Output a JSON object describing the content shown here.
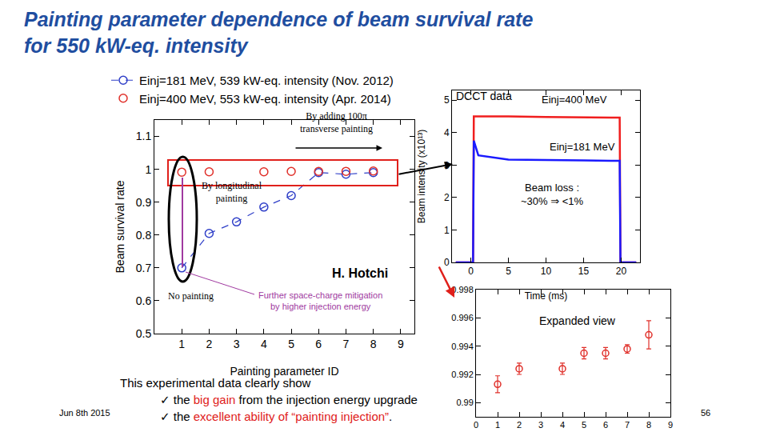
{
  "slide": {
    "title_lines": [
      "Painting parameter dependence of beam survival rate",
      "for 550 kW-eq. intensity"
    ],
    "notes_heading": "This experimental data clearly show",
    "bullet": "✓",
    "notes": [
      [
        "the ",
        "big gain",
        " from the injection energy upgrade"
      ],
      [
        "the ",
        "excellent ability of “painting injection”",
        "."
      ]
    ],
    "date": "Jun 8th 2015",
    "page": 56
  },
  "chart_data": [
    {
      "type": "scatter",
      "x_label": "Painting parameter ID",
      "y_label": "Beam survival rate",
      "x": [
        1,
        2,
        3,
        4,
        5,
        6,
        7,
        8
      ],
      "xlim": [
        0,
        9.5
      ],
      "xticks": [
        1,
        2,
        3,
        4,
        5,
        6,
        7,
        8,
        9
      ],
      "ylim": [
        0.5,
        1.15
      ],
      "yticks": [
        0.5,
        0.6,
        0.7,
        0.8,
        0.9,
        1,
        1.1
      ],
      "legend": "top left",
      "series": [
        {
          "name": "Einj=181 MeV, 539 kW-eq. intensity (Nov. 2012)",
          "color": "#2f3fc8",
          "marker": "circle-open",
          "line_style": "dash",
          "values": [
            0.7,
            0.805,
            0.84,
            0.885,
            0.92,
            0.99,
            0.985,
            0.99
          ]
        },
        {
          "name": "Einj=400 MeV, 553 kW-eq. intensity (Apr. 2014)",
          "color": "#e0302a",
          "marker": "circle-open",
          "line_style": "none",
          "values": [
            0.9913,
            0.9924,
            null,
            0.9924,
            0.9935,
            0.9935,
            0.9938,
            0.9948
          ]
        }
      ],
      "annotations": [
        [
          "By adding 100π",
          "transverse painting"
        ],
        [
          "By longitudinal",
          "painting"
        ],
        [
          "No painting"
        ],
        [
          "Further space-charge mitigation",
          "by higher injection energy"
        ],
        [
          "H. Hotchi"
        ]
      ]
    },
    {
      "type": "line",
      "x_label": "Time (ms)",
      "y_label": "Beam intensity (x10¹³)",
      "x": [
        -2,
        0.3,
        0.4,
        1,
        5,
        10,
        15,
        19.8,
        19.9,
        21,
        22
      ],
      "xlim": [
        -2.5,
        22.5
      ],
      "xticks": [
        0,
        5,
        10,
        15,
        20
      ],
      "ylim": [
        0,
        5.3
      ],
      "yticks": [
        0,
        1,
        2,
        3,
        4,
        5
      ],
      "series": [
        {
          "name": "Einj=400 MeV",
          "color": "#f01e1e",
          "line_style": "solid",
          "values": [
            0,
            0,
            4.5,
            4.5,
            4.5,
            4.48,
            4.47,
            4.46,
            0,
            0,
            0
          ]
        },
        {
          "name": "Einj=181 MeV",
          "color": "#1a1aff",
          "line_style": "solid",
          "values": [
            0,
            0,
            3.75,
            3.3,
            3.17,
            3.15,
            3.14,
            3.13,
            0,
            0,
            0
          ]
        }
      ],
      "annotations": [
        [
          "DCCT data"
        ],
        [
          "Beam loss :",
          "~30% ⇒ <1%"
        ]
      ]
    },
    {
      "type": "scatter",
      "x": [
        1,
        2,
        4,
        5,
        6,
        7,
        8
      ],
      "values": [
        0.9913,
        0.9924,
        0.9924,
        0.9935,
        0.9935,
        0.9938,
        0.9948
      ],
      "errors": [
        0.0006,
        0.0004,
        0.0004,
        0.0004,
        0.0004,
        0.0003,
        0.001
      ],
      "color": "#e0302a",
      "marker": "circle-open",
      "xlim": [
        0,
        9
      ],
      "xticks": [
        0,
        1,
        2,
        3,
        4,
        5,
        6,
        7,
        8,
        9
      ],
      "ylim": [
        0.989,
        0.998
      ],
      "yticks": [
        0.99,
        0.992,
        0.994,
        0.996,
        0.998
      ],
      "annotations": [
        [
          "Expanded view"
        ]
      ]
    }
  ]
}
